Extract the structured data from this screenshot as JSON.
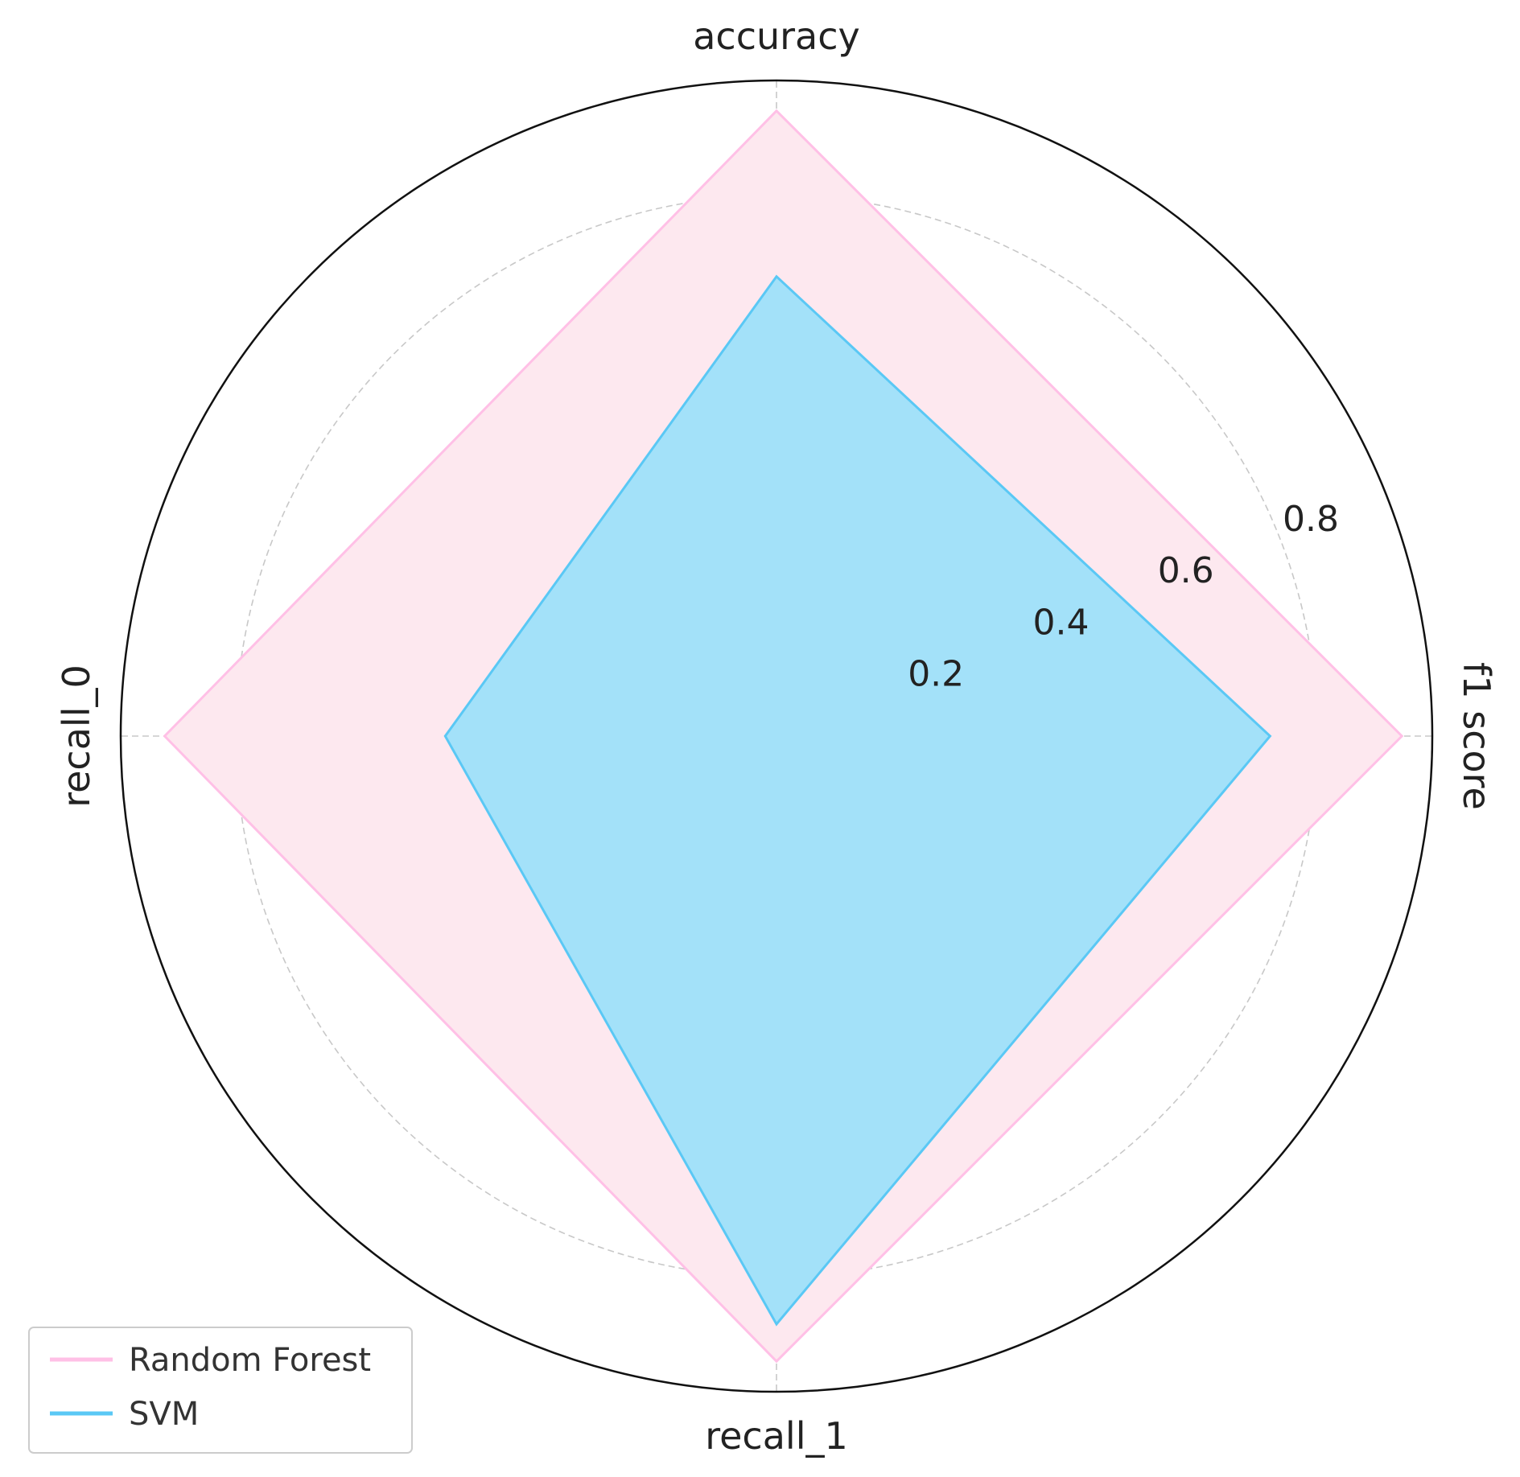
{
  "chart_data": {
    "type": "radar",
    "axes": [
      "accuracy",
      "f1 score",
      "recall_1",
      "recall_0"
    ],
    "rlim": [
      0,
      0.97
    ],
    "rticks": [
      0.2,
      0.4,
      0.6,
      0.8
    ],
    "rtick_labels": [
      "0.2",
      "0.4",
      "0.6",
      "0.8"
    ],
    "grid": true,
    "legend_position": "lower-left",
    "series": [
      {
        "name": "Random Forest",
        "values": [
          0.925,
          0.925,
          0.925,
          0.905
        ],
        "color": "#ffc0e6",
        "fill": "#fde8ef"
      },
      {
        "name": "SVM",
        "values": [
          0.68,
          0.73,
          0.87,
          0.49
        ],
        "color": "#5ac8f5",
        "fill": "#a3e1f9"
      }
    ]
  }
}
